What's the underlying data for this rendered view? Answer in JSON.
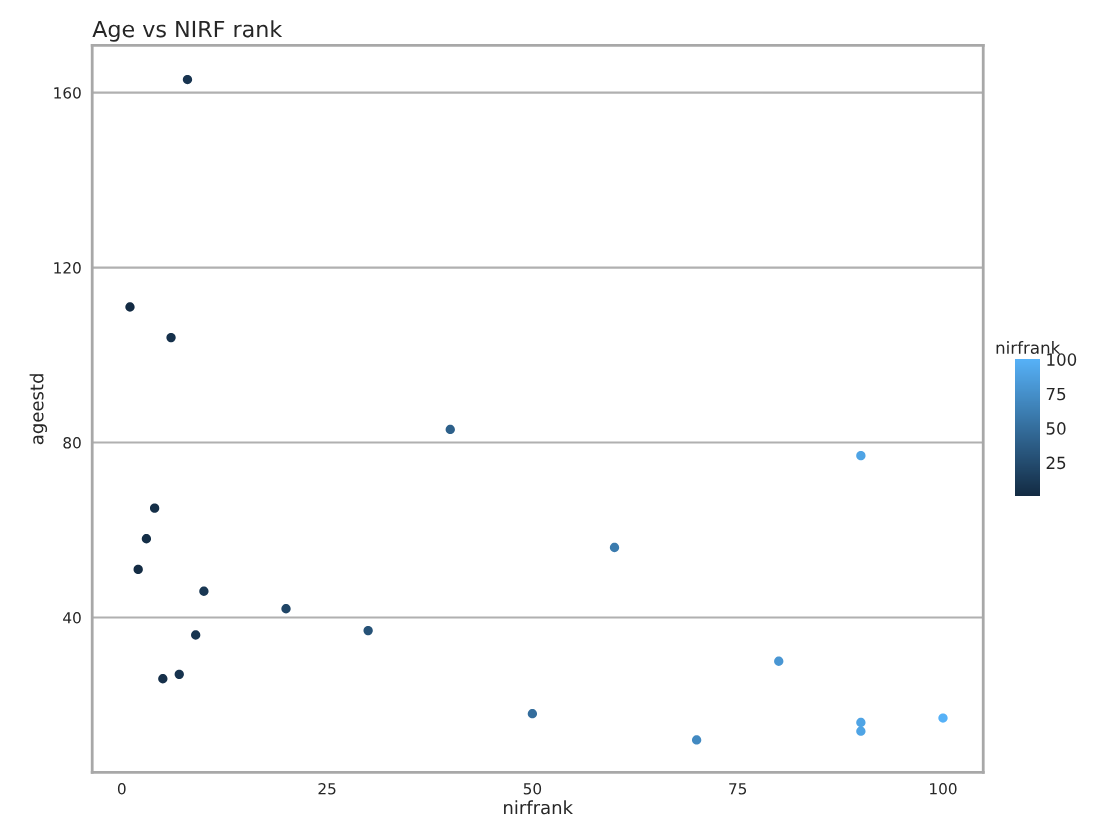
{
  "chart_data": {
    "type": "scatter",
    "title": "Age vs NIRF rank",
    "xlabel": "nirfrank",
    "ylabel": "ageestd",
    "clabel": "nirfrank",
    "x": [
      8,
      1,
      6,
      40,
      90,
      4,
      3,
      60,
      2,
      10,
      20,
      30,
      9,
      80,
      7,
      5,
      50,
      100,
      90,
      90,
      70
    ],
    "values": [
      163,
      111,
      104,
      83,
      77,
      65,
      58,
      56,
      51,
      46,
      42,
      37,
      36,
      30,
      27,
      26,
      18,
      17,
      16,
      14,
      12
    ],
    "cvalues": [
      8,
      1,
      6,
      40,
      90,
      4,
      3,
      60,
      2,
      10,
      20,
      30,
      9,
      80,
      7,
      5,
      50,
      100,
      90,
      90,
      70
    ],
    "clim": [
      1,
      100
    ],
    "cticks": [
      25,
      50,
      75,
      100
    ],
    "xlim": [
      -3.6,
      104.9
    ],
    "xticks": [
      0,
      25,
      50,
      75,
      100
    ],
    "ylim": [
      4.6,
      170.8
    ],
    "yticks": [
      40,
      80,
      120,
      160
    ],
    "grid": "y",
    "marker": "circle"
  }
}
